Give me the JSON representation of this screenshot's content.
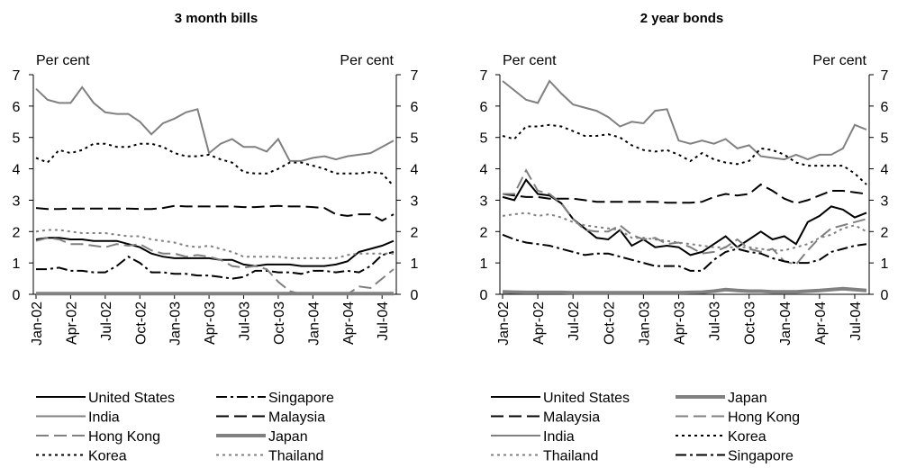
{
  "chart_data": [
    {
      "type": "line",
      "title": "3 month bills",
      "y_label": "Per cent",
      "y2_label": "Per cent",
      "categories": [
        "Jan-02",
        null,
        null,
        "Apr-02",
        null,
        null,
        "Jul-02",
        null,
        null,
        "Oct-02",
        null,
        null,
        "Jan-03",
        null,
        null,
        "Apr-03",
        null,
        null,
        "Jul-03",
        null,
        null,
        "Oct-03",
        null,
        null,
        "Jan-04",
        null,
        null,
        "Apr-04",
        null,
        null,
        "Jul-04",
        null
      ],
      "ylim": [
        0,
        7
      ],
      "yticks": [
        0,
        1,
        2,
        3,
        4,
        5,
        6,
        7
      ],
      "y2lim": [
        0,
        7
      ],
      "y2ticks": [
        0,
        1,
        2,
        3,
        4,
        5,
        6,
        7
      ],
      "series": [
        {
          "name": "United States",
          "color": "#000000",
          "dash": "solid",
          "width": 2,
          "values": [
            1.75,
            1.8,
            1.8,
            1.75,
            1.75,
            1.7,
            1.7,
            1.7,
            1.6,
            1.5,
            1.3,
            1.2,
            1.15,
            1.15,
            1.15,
            1.15,
            1.1,
            1.1,
            0.95,
            0.9,
            0.95,
            0.95,
            0.95,
            0.9,
            0.9,
            0.9,
            0.95,
            1.05,
            1.35,
            1.45,
            1.55,
            1.7
          ]
        },
        {
          "name": "Singapore",
          "color": "#000000",
          "dash": "dashdot",
          "width": 2,
          "values": [
            0.8,
            0.8,
            0.85,
            0.75,
            0.75,
            0.7,
            0.7,
            0.9,
            1.2,
            1.0,
            0.7,
            0.7,
            0.65,
            0.65,
            0.6,
            0.6,
            0.55,
            0.5,
            0.55,
            0.75,
            0.75,
            0.7,
            0.7,
            0.65,
            0.75,
            0.75,
            0.7,
            0.75,
            0.7,
            0.9,
            1.25,
            1.35
          ]
        },
        {
          "name": "India",
          "color": "#808080",
          "dash": "solid",
          "width": 2,
          "values": [
            6.55,
            6.2,
            6.1,
            6.1,
            6.6,
            6.1,
            5.8,
            5.75,
            5.75,
            5.5,
            5.1,
            5.45,
            5.6,
            5.8,
            5.9,
            4.5,
            4.8,
            4.95,
            4.7,
            4.7,
            4.55,
            4.95,
            4.25,
            4.25,
            4.35,
            4.4,
            4.3,
            4.4,
            4.45,
            4.5,
            4.7,
            4.9
          ]
        },
        {
          "name": "Malaysia",
          "color": "#000000",
          "dash": "dash",
          "width": 2,
          "values": [
            2.75,
            2.72,
            2.72,
            2.73,
            2.73,
            2.73,
            2.73,
            2.73,
            2.73,
            2.72,
            2.72,
            2.75,
            2.82,
            2.8,
            2.8,
            2.8,
            2.8,
            2.8,
            2.78,
            2.78,
            2.8,
            2.82,
            2.8,
            2.8,
            2.78,
            2.75,
            2.55,
            2.5,
            2.55,
            2.55,
            2.35,
            2.55
          ]
        },
        {
          "name": "Hong Kong",
          "color": "#808080",
          "dash": "dash",
          "width": 2,
          "values": [
            1.7,
            1.8,
            1.75,
            1.6,
            1.6,
            1.55,
            1.5,
            1.6,
            1.55,
            1.6,
            1.4,
            1.3,
            1.3,
            1.2,
            1.25,
            1.2,
            1.1,
            0.9,
            0.85,
            0.9,
            0.8,
            0.4,
            0.1,
            0.0,
            0.0,
            0.0,
            0.0,
            0.0,
            0.25,
            0.2,
            0.5,
            0.8
          ]
        },
        {
          "name": "Japan",
          "color": "#808080",
          "dash": "solid",
          "width": 4,
          "values": [
            0.02,
            0.02,
            0.02,
            0.02,
            0.02,
            0.02,
            0.02,
            0.02,
            0.02,
            0.02,
            0.02,
            0.02,
            0.02,
            0.02,
            0.02,
            0.02,
            0.02,
            0.02,
            0.02,
            0.02,
            0.02,
            0.02,
            0.02,
            0.02,
            0.02,
            0.02,
            0.02,
            0.02,
            0.02,
            0.02,
            0.02,
            0.02
          ]
        },
        {
          "name": "Korea",
          "color": "#000000",
          "dash": "dot",
          "width": 2,
          "values": [
            4.35,
            4.2,
            4.6,
            4.5,
            4.6,
            4.8,
            4.8,
            4.7,
            4.7,
            4.8,
            4.8,
            4.7,
            4.5,
            4.4,
            4.4,
            4.45,
            4.3,
            4.2,
            3.9,
            3.85,
            3.85,
            4.0,
            4.2,
            4.2,
            4.1,
            4.0,
            3.85,
            3.85,
            3.85,
            3.9,
            3.85,
            3.45
          ]
        },
        {
          "name": "Thailand",
          "color": "#808080",
          "dash": "dot",
          "width": 2,
          "values": [
            2.0,
            2.05,
            2.05,
            2.0,
            1.95,
            1.95,
            1.95,
            1.9,
            1.85,
            1.85,
            1.75,
            1.7,
            1.65,
            1.55,
            1.5,
            1.55,
            1.45,
            1.35,
            1.2,
            1.2,
            1.2,
            1.2,
            1.15,
            1.15,
            1.15,
            1.15,
            1.15,
            1.25,
            1.3,
            1.3,
            1.3,
            1.3
          ]
        }
      ]
    },
    {
      "type": "line",
      "title": "2 year bonds",
      "y_label": "Per cent",
      "y2_label": "Per cent",
      "categories": [
        "Jan-02",
        null,
        null,
        "Apr-02",
        null,
        null,
        "Jul-02",
        null,
        null,
        "Oct-02",
        null,
        null,
        "Jan-03",
        null,
        null,
        "Apr-03",
        null,
        null,
        "Jul-03",
        null,
        null,
        "Oct-03",
        null,
        null,
        "Jan-04",
        null,
        null,
        "Apr-04",
        null,
        null,
        "Jul-04",
        null
      ],
      "ylim": [
        0,
        7
      ],
      "yticks": [
        0,
        1,
        2,
        3,
        4,
        5,
        6,
        7
      ],
      "y2lim": [
        0,
        7
      ],
      "y2ticks": [
        0,
        1,
        2,
        3,
        4,
        5,
        6,
        7
      ],
      "series": [
        {
          "name": "United States",
          "color": "#000000",
          "dash": "solid",
          "width": 2,
          "values": [
            3.1,
            3.0,
            3.65,
            3.2,
            3.15,
            2.9,
            2.4,
            2.1,
            1.8,
            1.75,
            2.05,
            1.55,
            1.75,
            1.5,
            1.55,
            1.5,
            1.25,
            1.35,
            1.6,
            1.85,
            1.5,
            1.75,
            2.0,
            1.75,
            1.85,
            1.6,
            2.3,
            2.5,
            2.8,
            2.7,
            2.45,
            2.6
          ]
        },
        {
          "name": "Japan",
          "color": "#808080",
          "dash": "solid",
          "width": 4,
          "values": [
            0.08,
            0.07,
            0.06,
            0.06,
            0.06,
            0.06,
            0.05,
            0.05,
            0.05,
            0.05,
            0.05,
            0.05,
            0.05,
            0.05,
            0.05,
            0.05,
            0.06,
            0.07,
            0.1,
            0.15,
            0.12,
            0.1,
            0.1,
            0.08,
            0.08,
            0.08,
            0.1,
            0.12,
            0.15,
            0.18,
            0.15,
            0.12
          ]
        },
        {
          "name": "Malaysia",
          "color": "#000000",
          "dash": "dash",
          "width": 2,
          "values": [
            3.2,
            3.15,
            3.1,
            3.1,
            3.05,
            3.05,
            3.05,
            3.0,
            2.95,
            2.95,
            2.95,
            2.95,
            2.95,
            2.95,
            2.92,
            2.92,
            2.92,
            2.95,
            3.1,
            3.2,
            3.15,
            3.2,
            3.5,
            3.3,
            3.05,
            2.9,
            3.0,
            3.15,
            3.3,
            3.3,
            3.25,
            3.2
          ]
        },
        {
          "name": "Hong Kong",
          "color": "#808080",
          "dash": "dash",
          "width": 2,
          "values": [
            3.2,
            3.2,
            3.95,
            3.3,
            3.2,
            2.9,
            2.4,
            2.05,
            2.0,
            2.0,
            2.2,
            1.9,
            1.75,
            1.8,
            1.6,
            1.65,
            1.5,
            1.3,
            1.35,
            1.5,
            1.75,
            1.45,
            1.35,
            1.45,
            1.05,
            0.95,
            1.4,
            1.8,
            2.1,
            2.2,
            2.3,
            2.4
          ]
        },
        {
          "name": "India",
          "color": "#808080",
          "dash": "solid",
          "width": 2,
          "values": [
            6.8,
            6.5,
            6.2,
            6.1,
            6.8,
            6.4,
            6.05,
            5.95,
            5.85,
            5.65,
            5.35,
            5.5,
            5.45,
            5.85,
            5.9,
            4.9,
            4.8,
            4.9,
            4.8,
            4.95,
            4.65,
            4.75,
            4.4,
            4.35,
            4.3,
            4.45,
            4.3,
            4.45,
            4.45,
            4.65,
            5.4,
            5.25
          ]
        },
        {
          "name": "Korea",
          "color": "#000000",
          "dash": "dot",
          "width": 2,
          "values": [
            5.05,
            4.95,
            5.35,
            5.35,
            5.4,
            5.35,
            5.2,
            5.05,
            5.05,
            5.1,
            5.0,
            4.75,
            4.6,
            4.55,
            4.6,
            4.45,
            4.25,
            4.5,
            4.3,
            4.2,
            4.15,
            4.25,
            4.65,
            4.6,
            4.45,
            4.2,
            4.1,
            4.1,
            4.1,
            4.1,
            3.85,
            3.5
          ]
        },
        {
          "name": "Thailand",
          "color": "#808080",
          "dash": "dot",
          "width": 2,
          "values": [
            2.5,
            2.55,
            2.6,
            2.5,
            2.55,
            2.45,
            2.3,
            2.2,
            2.15,
            2.1,
            2.05,
            1.8,
            1.8,
            1.75,
            1.7,
            1.65,
            1.6,
            1.55,
            1.5,
            1.5,
            1.5,
            1.5,
            1.45,
            1.4,
            1.4,
            1.5,
            1.6,
            1.8,
            1.9,
            2.1,
            2.2,
            2.0
          ]
        },
        {
          "name": "Singapore",
          "color": "#000000",
          "dash": "dashdot",
          "width": 2,
          "values": [
            1.9,
            1.75,
            1.65,
            1.6,
            1.55,
            1.45,
            1.35,
            1.25,
            1.3,
            1.3,
            1.2,
            1.1,
            1.0,
            0.9,
            0.9,
            0.9,
            0.75,
            0.75,
            1.1,
            1.35,
            1.45,
            1.35,
            1.3,
            1.15,
            1.05,
            1.0,
            1.0,
            1.1,
            1.35,
            1.45,
            1.55,
            1.6
          ]
        }
      ]
    }
  ]
}
